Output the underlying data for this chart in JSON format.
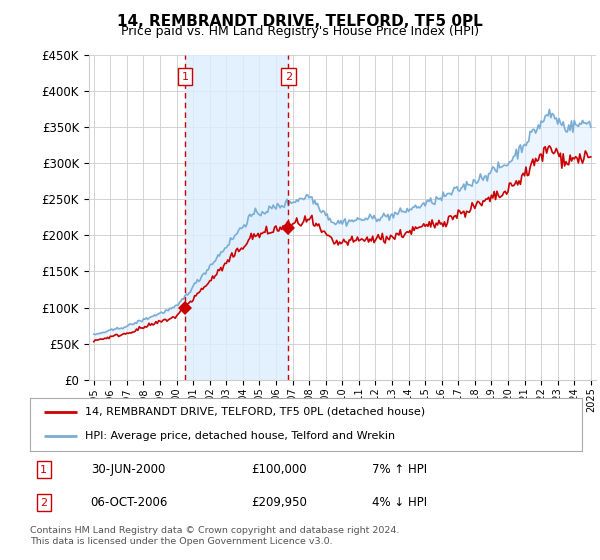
{
  "title": "14, REMBRANDT DRIVE, TELFORD, TF5 0PL",
  "subtitle": "Price paid vs. HM Land Registry's House Price Index (HPI)",
  "legend_line1": "14, REMBRANDT DRIVE, TELFORD, TF5 0PL (detached house)",
  "legend_line2": "HPI: Average price, detached house, Telford and Wrekin",
  "sale1_date": "30-JUN-2000",
  "sale1_price": "£100,000",
  "sale1_hpi": "7% ↑ HPI",
  "sale2_date": "06-OCT-2006",
  "sale2_price": "£209,950",
  "sale2_hpi": "4% ↓ HPI",
  "footer": "Contains HM Land Registry data © Crown copyright and database right 2024.\nThis data is licensed under the Open Government Licence v3.0.",
  "ylim": [
    0,
    450000
  ],
  "yticks": [
    0,
    50000,
    100000,
    150000,
    200000,
    250000,
    300000,
    350000,
    400000,
    450000
  ],
  "sale1_year": 2000.5,
  "sale2_year": 2006.75,
  "sale1_value": 100000,
  "sale2_value": 209950,
  "property_color": "#cc0000",
  "hpi_color": "#7aadd4",
  "shade_color": "#ddeeff",
  "dashed_line_color": "#cc0000",
  "background_color": "#ffffff",
  "grid_color": "#cccccc",
  "xlim_min": 1994.7,
  "xlim_max": 2025.3
}
